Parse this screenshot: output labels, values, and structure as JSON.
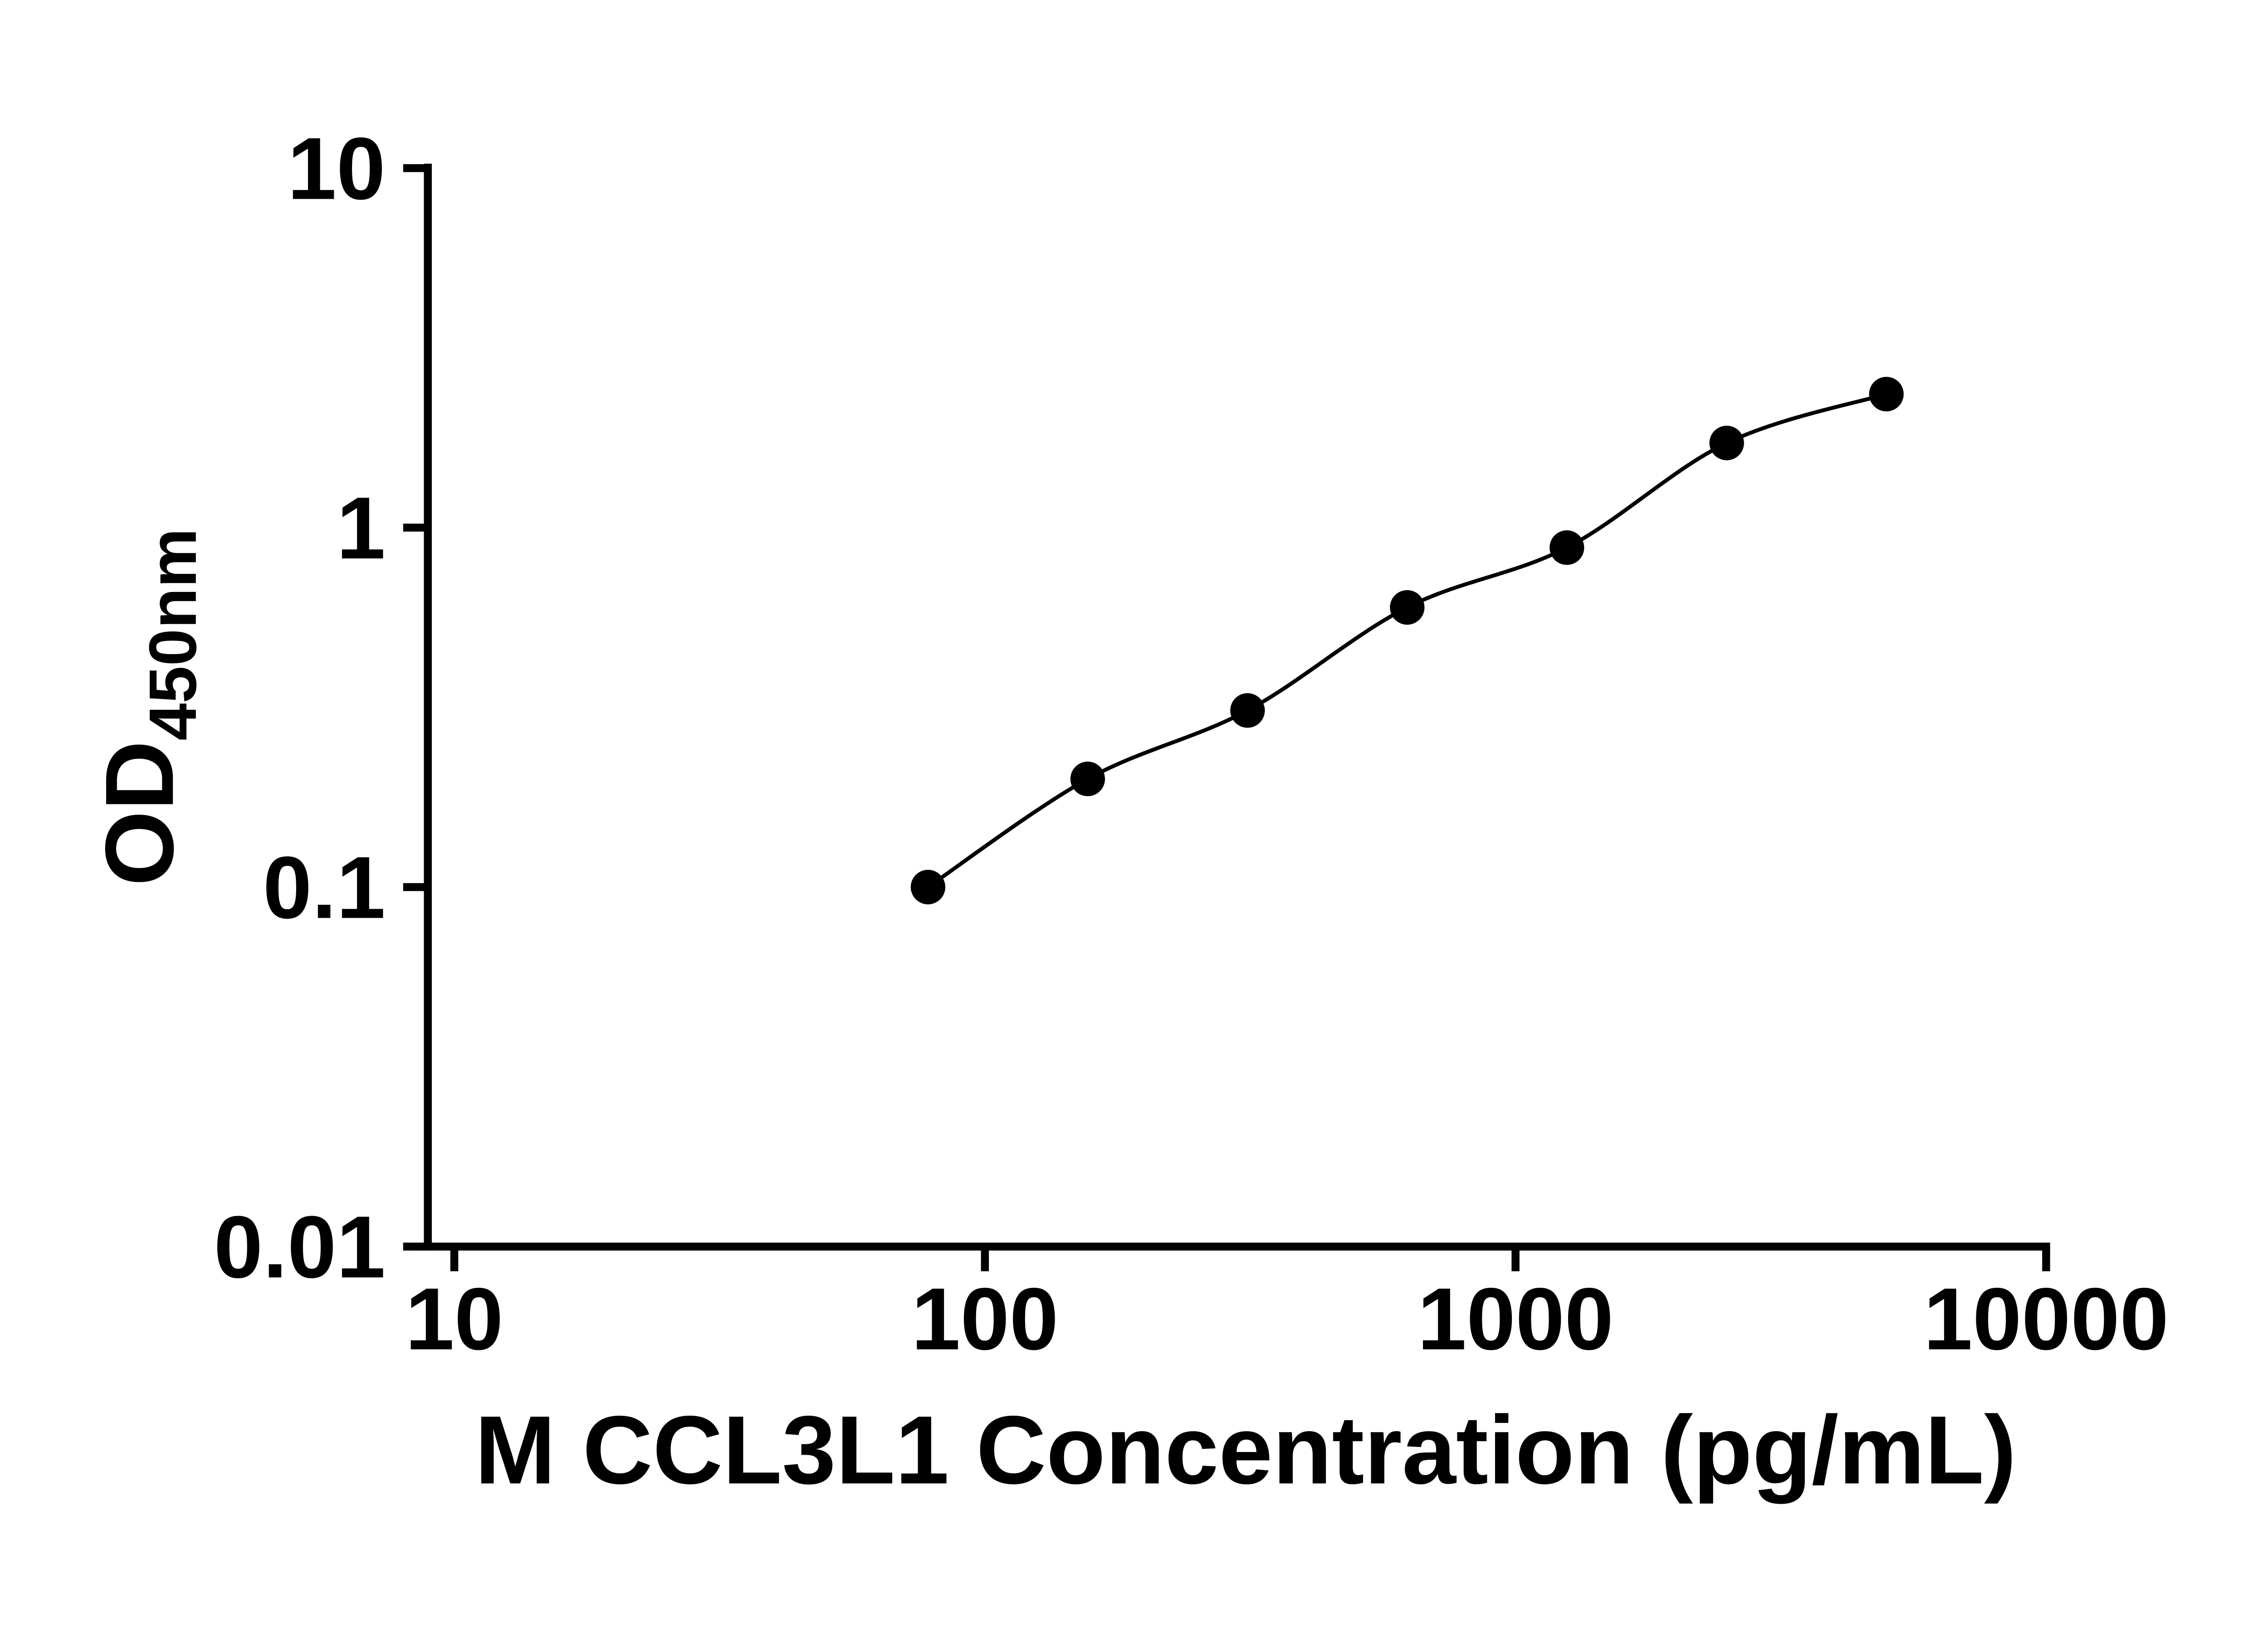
{
  "chart_data": {
    "type": "scatter",
    "title": "",
    "background_color": "#ffffff",
    "axis_color": "#000000",
    "grid": "off",
    "legend": "none",
    "x_axis": {
      "label": "M CCL3L1 Concentration (pg/mL)",
      "scale": "log10",
      "min": 10,
      "max": 10000,
      "ticks": [
        {
          "value": 10,
          "label": "10"
        },
        {
          "value": 100,
          "label": "100"
        },
        {
          "value": 1000,
          "label": "1000"
        },
        {
          "value": 10000,
          "label": "10000"
        }
      ]
    },
    "y_axis": {
      "label_main": "OD",
      "label_sub": "450nm",
      "scale": "log10",
      "min": 0.01,
      "max": 10,
      "ticks": [
        {
          "value": 10,
          "label": "10"
        },
        {
          "value": 1,
          "label": "1"
        },
        {
          "value": 0.1,
          "label": "0.1"
        },
        {
          "value": 0.01,
          "label": "0.01"
        }
      ]
    },
    "series": [
      {
        "marker": "filled-circle",
        "marker_color": "#000000",
        "line": "smooth-fit",
        "line_color": "#000000",
        "points": [
          {
            "x": 78.125,
            "y": 0.1
          },
          {
            "x": 156.25,
            "y": 0.2
          },
          {
            "x": 312.5,
            "y": 0.31
          },
          {
            "x": 625,
            "y": 0.6
          },
          {
            "x": 1250,
            "y": 0.88
          },
          {
            "x": 2500,
            "y": 1.72
          },
          {
            "x": 5000,
            "y": 2.35
          }
        ]
      }
    ]
  }
}
